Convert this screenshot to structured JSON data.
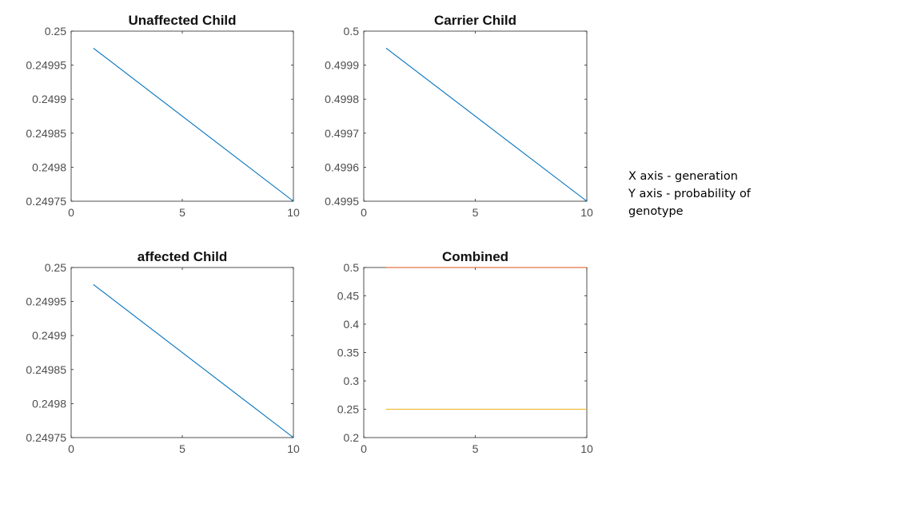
{
  "chart_data": [
    {
      "type": "line",
      "title": "Unaffected Child",
      "xlabel": "",
      "ylabel": "",
      "xlim": [
        0,
        10
      ],
      "ylim": [
        0.24975,
        0.25
      ],
      "xticks": [
        0,
        5,
        10
      ],
      "yticks": [
        0.25,
        0.24995,
        0.2499,
        0.24985,
        0.2498,
        0.24975
      ],
      "ytick_labels": [
        "0.25",
        "0.24995",
        "0.2499",
        "0.24985",
        "0.2498",
        "0.24975"
      ],
      "grid": false,
      "series": [
        {
          "color": "#0072BD",
          "x": [
            1,
            10
          ],
          "y": [
            0.249975,
            0.24975
          ]
        }
      ]
    },
    {
      "type": "line",
      "title": "Carrier Child",
      "xlabel": "",
      "ylabel": "",
      "xlim": [
        0,
        10
      ],
      "ylim": [
        0.4995,
        0.5
      ],
      "xticks": [
        0,
        5,
        10
      ],
      "yticks": [
        0.5,
        0.4999,
        0.4998,
        0.4997,
        0.4996,
        0.4995
      ],
      "ytick_labels": [
        "0.5",
        "0.4999",
        "0.4998",
        "0.4997",
        "0.4996",
        "0.4995"
      ],
      "grid": false,
      "series": [
        {
          "color": "#0072BD",
          "x": [
            1,
            10
          ],
          "y": [
            0.49995,
            0.4995
          ]
        }
      ]
    },
    {
      "type": "line",
      "title": "affected Child",
      "xlabel": "",
      "ylabel": "",
      "xlim": [
        0,
        10
      ],
      "ylim": [
        0.24975,
        0.25
      ],
      "xticks": [
        0,
        5,
        10
      ],
      "yticks": [
        0.25,
        0.24995,
        0.2499,
        0.24985,
        0.2498,
        0.24975
      ],
      "ytick_labels": [
        "0.25",
        "0.24995",
        "0.2499",
        "0.24985",
        "0.2498",
        "0.24975"
      ],
      "grid": false,
      "series": [
        {
          "color": "#0072BD",
          "x": [
            1,
            10
          ],
          "y": [
            0.249975,
            0.24975
          ]
        }
      ]
    },
    {
      "type": "line",
      "title": "Combined",
      "xlabel": "",
      "ylabel": "",
      "xlim": [
        0,
        10
      ],
      "ylim": [
        0.2,
        0.5
      ],
      "xticks": [
        0,
        5,
        10
      ],
      "yticks": [
        0.5,
        0.45,
        0.4,
        0.35,
        0.3,
        0.25,
        0.2
      ],
      "ytick_labels": [
        "0.5",
        "0.45",
        "0.4",
        "0.35",
        "0.3",
        "0.25",
        "0.2"
      ],
      "grid": false,
      "series": [
        {
          "color": "#0072BD",
          "x": [
            1,
            10
          ],
          "y": [
            0.25,
            0.25
          ]
        },
        {
          "color": "#D95319",
          "x": [
            1,
            10
          ],
          "y": [
            0.5,
            0.5
          ]
        },
        {
          "color": "#EDB120",
          "x": [
            1,
            10
          ],
          "y": [
            0.25,
            0.25
          ]
        }
      ]
    }
  ],
  "note": {
    "line1": "X axis - generation",
    "line2": "Y axis - probability of",
    "line3": "genotype"
  }
}
